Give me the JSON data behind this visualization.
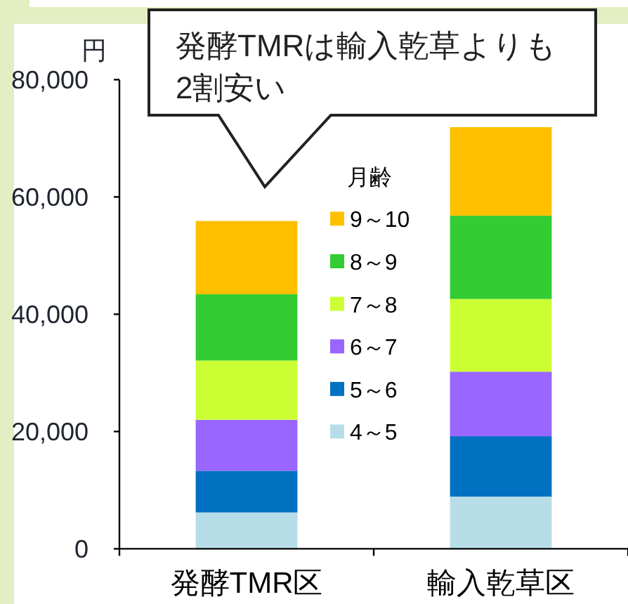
{
  "chart_data": {
    "type": "bar",
    "stacked": true,
    "categories": [
      "発酵TMR区",
      "輸入乾草区"
    ],
    "ylabel": "円",
    "legend_title": "月齢",
    "legend": "center",
    "annotations": [
      "発酵TMRは輸入乾草よりも\n2割安い"
    ],
    "ylim": [
      0,
      80000
    ],
    "yticks": [
      0,
      {
        "value": 20000,
        "label": "20,000"
      },
      {
        "value": 40000,
        "label": "40,000"
      },
      {
        "value": 60000,
        "label": "60,000"
      },
      {
        "value": 80000,
        "label": "80,000"
      }
    ],
    "series": [
      {
        "name": "4～5",
        "color": "#b7dde8",
        "values": [
          6200,
          8900
        ]
      },
      {
        "name": "5～6",
        "color": "#0070c0",
        "values": [
          7100,
          10300
        ]
      },
      {
        "name": "6～7",
        "color": "#9966ff",
        "values": [
          8700,
          11000
        ]
      },
      {
        "name": "7～8",
        "color": "#ccff33",
        "values": [
          10100,
          12400
        ]
      },
      {
        "name": "8～9",
        "color": "#33cc33",
        "values": [
          11300,
          14200
        ]
      },
      {
        "name": "9～10",
        "color": "#ffc000",
        "values": [
          12500,
          15100
        ]
      }
    ]
  }
}
